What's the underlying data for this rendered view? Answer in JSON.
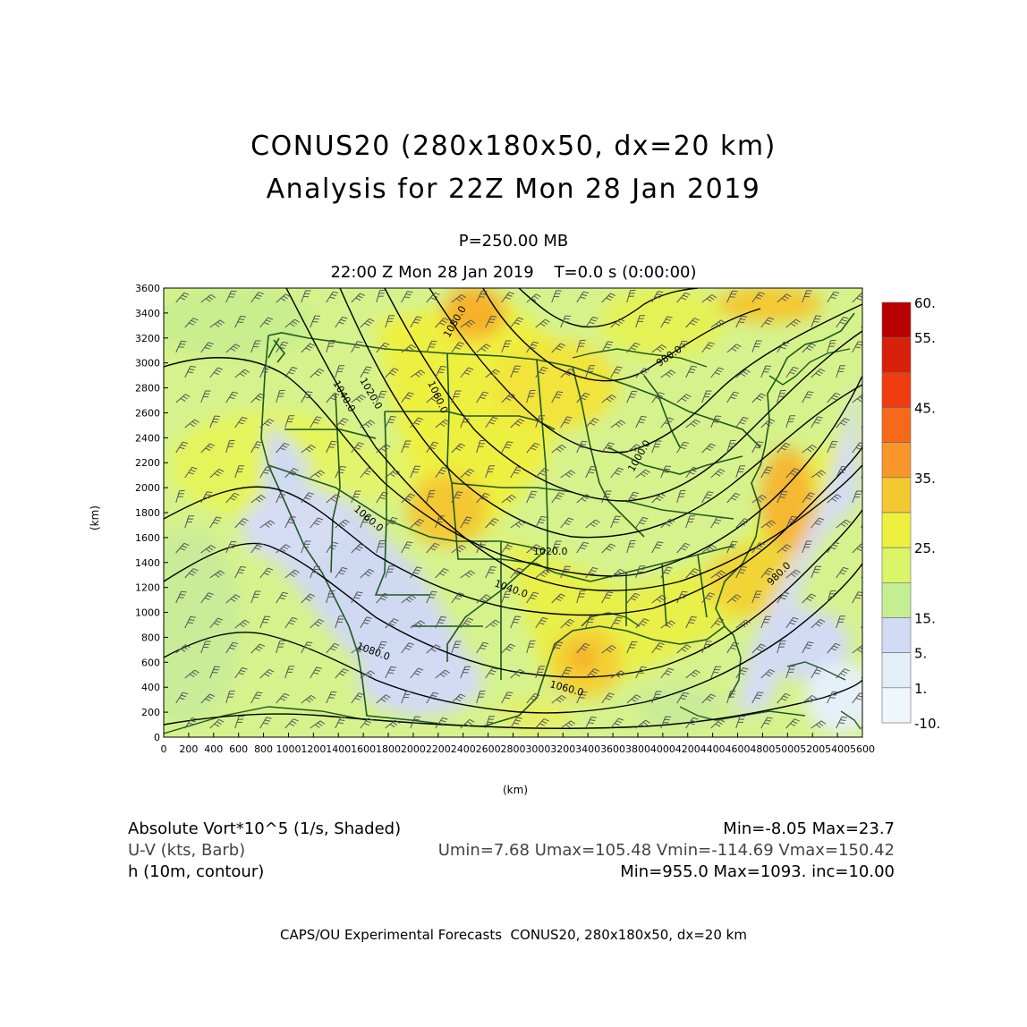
{
  "header": {
    "title_line1": "CONUS20 (280x180x50, dx=20 km)",
    "title_line2": "Analysis for 22Z Mon 28 Jan 2019",
    "level": "P=250.00 MB",
    "valid_time": "22:00 Z Mon 28 Jan 2019    T=0.0 s (0:00:00)"
  },
  "axes": {
    "x_unit": "(km)",
    "y_unit": "(km)",
    "x_ticks": [
      "0",
      "200",
      "400",
      "600",
      "800",
      "1000",
      "1200",
      "1400",
      "1600",
      "1800",
      "2000",
      "2200",
      "2400",
      "2600",
      "2800",
      "3000",
      "3200",
      "3400",
      "3600",
      "3800",
      "4000",
      "4200",
      "4400",
      "4600",
      "4800",
      "5000",
      "5200",
      "5400",
      "5600"
    ],
    "y_ticks": [
      "0",
      "200",
      "400",
      "600",
      "800",
      "1000",
      "1200",
      "1400",
      "1600",
      "1800",
      "2000",
      "2200",
      "2400",
      "2600",
      "2800",
      "3000",
      "3200",
      "3400",
      "3600"
    ],
    "x_range_km": [
      0,
      5600
    ],
    "y_range_km": [
      0,
      3600
    ]
  },
  "colorbar": {
    "labels": [
      "60.",
      "55.",
      "45.",
      "35.",
      "25.",
      "15.",
      "5.",
      "1.",
      "-10."
    ],
    "colors": [
      "#b80000",
      "#d8200a",
      "#ee3b10",
      "#f46a1a",
      "#f8962a",
      "#f4c830",
      "#eef040",
      "#dcf468",
      "#c4ee92",
      "#d2daf4",
      "#e2eef8",
      "#eef8fc"
    ]
  },
  "contour_labels": [
    "1020.0",
    "1040.0",
    "1060.0",
    "1080.0",
    "1000.0",
    "980.0",
    "1020.0",
    "1040.0",
    "1060.0",
    "1080.0",
    "1060.0",
    "980.0"
  ],
  "legend": {
    "field1_name": "Absolute Vort*10^5 (1/s, Shaded)",
    "field1_stats": "Min=-8.05 Max=23.7",
    "field2_name": "U-V (kts, Barb)",
    "field2_stats": "Umin=7.68 Umax=105.48 Vmin=-114.69 Vmax=150.42",
    "field3_name": "h (10m, contour)",
    "field3_stats": "Min=955.0 Max=1093. inc=10.00"
  },
  "footer": "CAPS/OU Experimental Forecasts  CONUS20, 280x180x50, dx=20 km"
}
